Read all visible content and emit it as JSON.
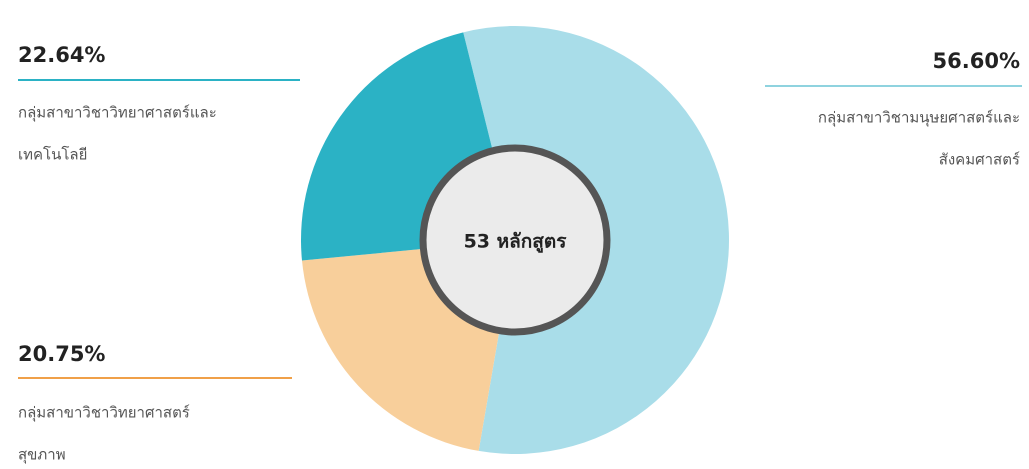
{
  "chart_data": {
    "type": "pie",
    "center_label": "53 หลักสูตร",
    "categories": [
      [
        "กลุ่มสาขาวิชามนุษยศาสตร์และ",
        "สังคมศาสตร์"
      ],
      [
        "กลุ่มสาขาวิชาวิทยาศาสตร์",
        "สุขภาพ"
      ],
      [
        "กลุ่มสาขาวิชาวิทยาศาสตร์และ",
        "เทคโนโลยี"
      ]
    ],
    "values": [
      56.6,
      20.75,
      22.64
    ],
    "value_labels": [
      "56.60%",
      "20.75%",
      "22.64%"
    ],
    "colors": [
      "#a9dde9",
      "#f8cf9b",
      "#2bb2c5"
    ],
    "line_colors": [
      "#8fd3df",
      "#f0a048",
      "#2bb2c5"
    ]
  }
}
